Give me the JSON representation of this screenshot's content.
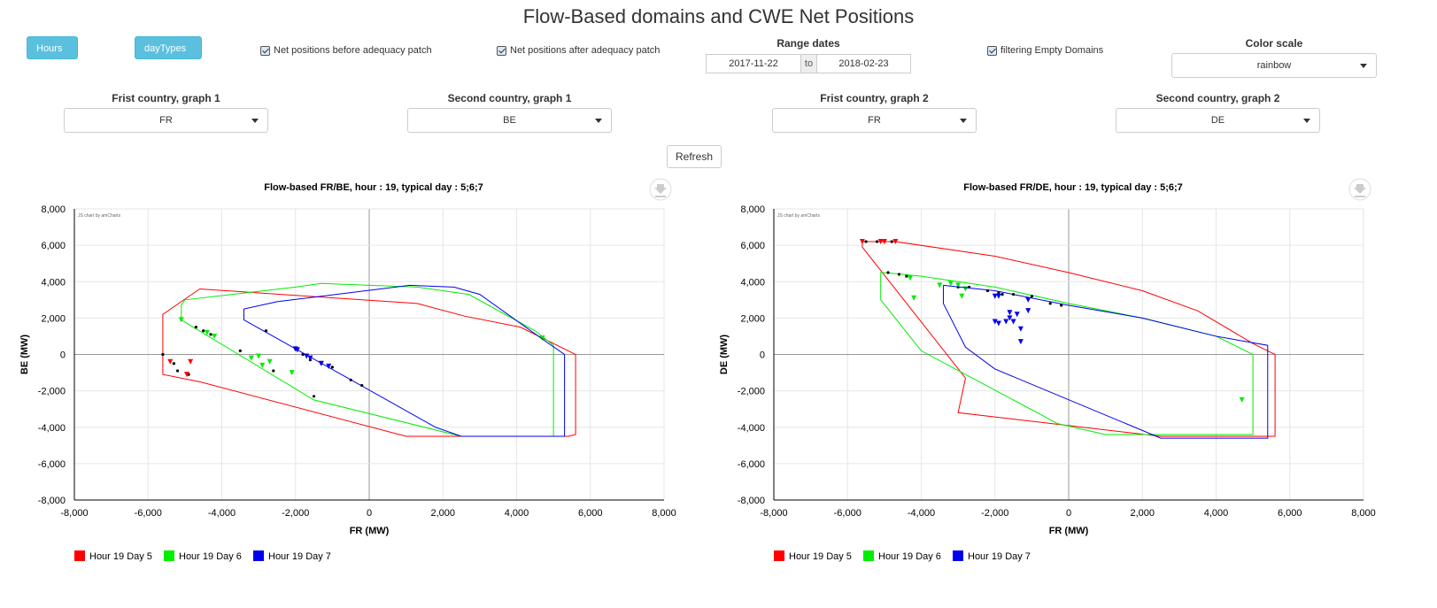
{
  "page_title": "Flow-Based domains and CWE Net Positions",
  "controls": {
    "hours_label": "Hours",
    "daytypes_label": "dayTypes",
    "net_before_label": "Net positions before adequacy patch",
    "net_after_label": "Net positions after adequacy patch",
    "range_label": "Range dates",
    "date_from": "2017-11-22",
    "date_to_sep": "to",
    "date_to": "2018-02-23",
    "filter_empty_label": "filtering Empty Domains",
    "color_scale_label": "Color scale",
    "color_scale_value": "rainbow",
    "country1_g1_label": "Frist country, graph 1",
    "country1_g1_value": "FR",
    "country2_g1_label": "Second country, graph 1",
    "country2_g1_value": "BE",
    "country1_g2_label": "Frist country, graph 2",
    "country1_g2_value": "FR",
    "country2_g2_label": "Second country, graph 2",
    "country2_g2_value": "DE",
    "refresh_label": "Refresh"
  },
  "colors": {
    "day5": "#ff0000",
    "day6": "#00ee00",
    "day7": "#0000ee",
    "button": "#5bc0de"
  },
  "chart_data": [
    {
      "type": "scatter",
      "title": "Flow-based FR/BE, hour : 19, typical day : 5;6;7",
      "xlabel": "FR (MW)",
      "ylabel": "BE (MW)",
      "credit": "JS chart by amCharts",
      "xlim": [
        -8000,
        8000
      ],
      "ylim": [
        -8000,
        8000
      ],
      "xticks": [
        "-8,000",
        "-6,000",
        "-4,000",
        "-2,000",
        "0",
        "2,000",
        "4,000",
        "6,000",
        "8,000"
      ],
      "yticks": [
        "8,000",
        "6,000",
        "4,000",
        "2,000",
        "0",
        "-2,000",
        "-4,000",
        "-6,000",
        "-8,000"
      ],
      "grid": true,
      "legend_position": "bottom-left",
      "series": [
        {
          "name": "Hour 19 Day 5",
          "color": "#ff0000",
          "domain": [
            [
              -4600,
              3600
            ],
            [
              1300,
              2800
            ],
            [
              2600,
              2100
            ],
            [
              4100,
              1500
            ],
            [
              4900,
              700
            ],
            [
              5600,
              0
            ],
            [
              5600,
              -4400
            ],
            [
              5400,
              -4500
            ],
            [
              1000,
              -4500
            ],
            [
              -4600,
              -1500
            ],
            [
              -5600,
              -1100
            ],
            [
              -5600,
              2200
            ],
            [
              -4600,
              3600
            ]
          ],
          "points": [
            [
              -5600,
              0
            ],
            [
              -5300,
              -500
            ],
            [
              -5200,
              -900
            ],
            [
              -4900,
              -1100
            ]
          ],
          "triangles": [
            [
              -5400,
              -400
            ],
            [
              -4950,
              -1100
            ],
            [
              -4850,
              -400
            ]
          ]
        },
        {
          "name": "Hour 19 Day 6",
          "color": "#00ee00",
          "domain": [
            [
              -5000,
              3000
            ],
            [
              -2000,
              3700
            ],
            [
              -1300,
              3900
            ],
            [
              1300,
              3700
            ],
            [
              2700,
              3300
            ],
            [
              4500,
              1300
            ],
            [
              5000,
              500
            ],
            [
              5000,
              -4500
            ],
            [
              2500,
              -4500
            ],
            [
              -1500,
              -2500
            ],
            [
              -5100,
              1900
            ],
            [
              -5100,
              2700
            ],
            [
              -5000,
              3000
            ]
          ],
          "points": [
            [
              -4700,
              1500
            ],
            [
              -4500,
              1300
            ],
            [
              -4300,
              1100
            ],
            [
              -3500,
              200
            ],
            [
              -2600,
              -900
            ],
            [
              -1500,
              -2300
            ]
          ],
          "triangles": [
            [
              -5100,
              1900
            ],
            [
              -4400,
              1200
            ],
            [
              -4200,
              1000
            ],
            [
              -3200,
              -200
            ],
            [
              -3000,
              -100
            ],
            [
              -2900,
              -600
            ],
            [
              -2700,
              -400
            ],
            [
              -2100,
              -1000
            ],
            [
              4700,
              900
            ]
          ]
        },
        {
          "name": "Hour 19 Day 7",
          "color": "#0000ee",
          "domain": [
            [
              -2500,
              2900
            ],
            [
              1100,
              3800
            ],
            [
              2300,
              3700
            ],
            [
              3000,
              3300
            ],
            [
              4800,
              700
            ],
            [
              5300,
              0
            ],
            [
              5300,
              -4500
            ],
            [
              2500,
              -4500
            ],
            [
              1800,
              -4000
            ],
            [
              -3400,
              1900
            ],
            [
              -3400,
              2500
            ],
            [
              -2500,
              2900
            ]
          ],
          "points": [
            [
              -2800,
              1300
            ],
            [
              -2000,
              300
            ],
            [
              -1800,
              0
            ],
            [
              -1600,
              -300
            ],
            [
              -1300,
              -500
            ],
            [
              -1000,
              -700
            ],
            [
              -500,
              -1400
            ],
            [
              -200,
              -1700
            ]
          ],
          "triangles": [
            [
              -2000,
              300
            ],
            [
              -1950,
              250
            ],
            [
              -1700,
              -100
            ],
            [
              -1600,
              -200
            ],
            [
              -1300,
              -500
            ],
            [
              -1100,
              -650
            ]
          ]
        }
      ]
    },
    {
      "type": "scatter",
      "title": "Flow-based FR/DE, hour : 19, typical day : 5;6;7",
      "xlabel": "FR (MW)",
      "ylabel": "DE (MW)",
      "credit": "JS chart by amCharts",
      "xlim": [
        -8000,
        8000
      ],
      "ylim": [
        -8000,
        8000
      ],
      "xticks": [
        "-8,000",
        "-6,000",
        "-4,000",
        "-2,000",
        "0",
        "2,000",
        "4,000",
        "6,000",
        "8,000"
      ],
      "yticks": [
        "8,000",
        "6,000",
        "4,000",
        "2,000",
        "0",
        "-2,000",
        "-4,000",
        "-6,000",
        "-8,000"
      ],
      "grid": true,
      "legend_position": "bottom-left",
      "series": [
        {
          "name": "Hour 19 Day 5",
          "color": "#ff0000",
          "domain": [
            [
              -5600,
              6200
            ],
            [
              -4700,
              6200
            ],
            [
              -2000,
              5400
            ],
            [
              0,
              4500
            ],
            [
              2000,
              3500
            ],
            [
              3500,
              2400
            ],
            [
              5000,
              600
            ],
            [
              5600,
              0
            ],
            [
              5600,
              -4500
            ],
            [
              2500,
              -4500
            ],
            [
              -3000,
              -3200
            ],
            [
              -2800,
              -1300
            ],
            [
              -5600,
              5900
            ],
            [
              -5600,
              6200
            ]
          ],
          "points": [
            [
              -5500,
              6200
            ],
            [
              -5200,
              6200
            ],
            [
              -4800,
              6200
            ]
          ],
          "triangles": [
            [
              -5600,
              6200
            ],
            [
              -5100,
              6200
            ],
            [
              -5000,
              6200
            ],
            [
              -4700,
              6200
            ]
          ]
        },
        {
          "name": "Hour 19 Day 6",
          "color": "#00ee00",
          "domain": [
            [
              -5000,
              4500
            ],
            [
              -4000,
              4300
            ],
            [
              -2000,
              3700
            ],
            [
              0,
              2800
            ],
            [
              2000,
              2000
            ],
            [
              4000,
              1000
            ],
            [
              5000,
              0
            ],
            [
              5000,
              -4400
            ],
            [
              1000,
              -4400
            ],
            [
              -300,
              -3800
            ],
            [
              -4000,
              200
            ],
            [
              -5100,
              3000
            ],
            [
              -5100,
              4500
            ],
            [
              -5000,
              4500
            ]
          ],
          "points": [
            [
              -4900,
              4500
            ],
            [
              -4600,
              4400
            ],
            [
              -4400,
              4300
            ],
            [
              -3000,
              3700
            ],
            [
              -2700,
              3700
            ]
          ],
          "triangles": [
            [
              -4300,
              4200
            ],
            [
              -4200,
              3100
            ],
            [
              -3500,
              3800
            ],
            [
              -3200,
              3900
            ],
            [
              -3000,
              3800
            ],
            [
              -2900,
              3200
            ],
            [
              -2800,
              3600
            ],
            [
              4700,
              -2500
            ]
          ]
        },
        {
          "name": "Hour 19 Day 7",
          "color": "#0000ee",
          "domain": [
            [
              -3400,
              3800
            ],
            [
              -2000,
              3500
            ],
            [
              0,
              2700
            ],
            [
              2000,
              2000
            ],
            [
              4000,
              1000
            ],
            [
              5400,
              500
            ],
            [
              5400,
              -4600
            ],
            [
              2500,
              -4600
            ],
            [
              -2000,
              -800
            ],
            [
              -2800,
              400
            ],
            [
              -3400,
              2800
            ],
            [
              -3400,
              3800
            ]
          ],
          "points": [
            [
              -2200,
              3500
            ],
            [
              -1900,
              3400
            ],
            [
              -1800,
              3300
            ],
            [
              -1500,
              3300
            ],
            [
              -1000,
              3200
            ],
            [
              -500,
              2800
            ],
            [
              -200,
              2700
            ]
          ],
          "triangles": [
            [
              -2000,
              3200
            ],
            [
              -1900,
              3200
            ],
            [
              -2000,
              1800
            ],
            [
              -1900,
              1700
            ],
            [
              -1700,
              1800
            ],
            [
              -1600,
              2300
            ],
            [
              -1600,
              2000
            ],
            [
              -1500,
              1800
            ],
            [
              -1400,
              2200
            ],
            [
              -1300,
              1400
            ],
            [
              -1300,
              700
            ],
            [
              -1100,
              2400
            ],
            [
              -1100,
              3000
            ]
          ]
        }
      ]
    }
  ]
}
